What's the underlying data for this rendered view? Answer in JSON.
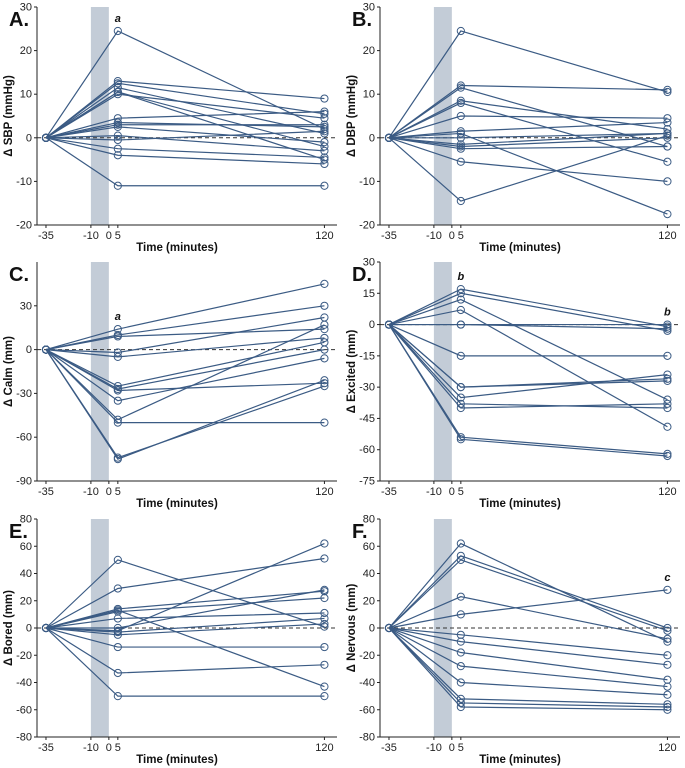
{
  "figure": {
    "line_color": "#3b5b84",
    "band_color": "#c3ccd7",
    "axis_color": "#222222"
  },
  "chart_data": [
    {
      "type": "line",
      "panel_label": "A.",
      "ylabel": "Δ SBP (mmHg)",
      "xlabel": "Time (minutes)",
      "ylim": [
        -20,
        30
      ],
      "yticks": [
        -20,
        -10,
        0,
        10,
        20,
        30
      ],
      "xticks": [
        -35,
        -10,
        0,
        5,
        120
      ],
      "shaded_interval": [
        -10,
        0
      ],
      "reference_line": 0,
      "annotations": [
        {
          "x": 5,
          "text": "a"
        }
      ],
      "x": [
        -35,
        5,
        120
      ],
      "series": [
        {
          "values": [
            0,
            24.5,
            2
          ]
        },
        {
          "values": [
            0,
            13,
            9
          ]
        },
        {
          "values": [
            0,
            12.5,
            5.5
          ]
        },
        {
          "values": [
            0,
            11.5,
            1
          ]
        },
        {
          "values": [
            0,
            10.5,
            -2
          ]
        },
        {
          "values": [
            0,
            10,
            4.5
          ]
        },
        {
          "values": [
            0,
            10.5,
            -5
          ]
        },
        {
          "values": [
            0,
            4.5,
            6
          ]
        },
        {
          "values": [
            0,
            3.5,
            2.5
          ]
        },
        {
          "values": [
            0,
            3,
            3
          ]
        },
        {
          "values": [
            0,
            2.5,
            -1
          ]
        },
        {
          "values": [
            0,
            0.5,
            -3
          ]
        },
        {
          "values": [
            0,
            -0.5,
            1.5
          ]
        },
        {
          "values": [
            0,
            -2.5,
            -4.5
          ]
        },
        {
          "values": [
            0,
            -4,
            -6
          ]
        },
        {
          "values": [
            0,
            -11,
            -11
          ]
        }
      ]
    },
    {
      "type": "line",
      "panel_label": "B.",
      "ylabel": "Δ DBP (mmHg)",
      "xlabel": "Time (minutes)",
      "ylim": [
        -20,
        30
      ],
      "yticks": [
        -20,
        -10,
        0,
        10,
        20,
        30
      ],
      "xticks": [
        -35,
        -10,
        0,
        5,
        120
      ],
      "shaded_interval": [
        -10,
        0
      ],
      "reference_line": 0,
      "annotations": [],
      "x": [
        -35,
        5,
        120
      ],
      "series": [
        {
          "values": [
            0,
            24.5,
            10.5
          ]
        },
        {
          "values": [
            0,
            12,
            11
          ]
        },
        {
          "values": [
            0,
            11.5,
            -2
          ]
        },
        {
          "values": [
            0,
            8.5,
            2
          ]
        },
        {
          "values": [
            0,
            8,
            -5.5
          ]
        },
        {
          "values": [
            0,
            5,
            4.5
          ]
        },
        {
          "values": [
            0,
            1.5,
            3.5
          ]
        },
        {
          "values": [
            0,
            0,
            1
          ]
        },
        {
          "values": [
            0,
            -1.5,
            1
          ]
        },
        {
          "values": [
            0,
            -2,
            0
          ]
        },
        {
          "values": [
            0,
            -2.5,
            -2
          ]
        },
        {
          "values": [
            0,
            -5.5,
            -10
          ]
        },
        {
          "values": [
            0,
            -14.5,
            0.5
          ]
        },
        {
          "values": [
            0,
            1,
            -17.5
          ]
        }
      ]
    },
    {
      "type": "line",
      "panel_label": "C.",
      "ylabel": "Δ Calm (mm)",
      "xlabel": "Time (minutes)",
      "ylim": [
        -90,
        60
      ],
      "yticks": [
        -90,
        -60,
        -30,
        0,
        30
      ],
      "xticks": [
        -35,
        -10,
        0,
        5,
        120
      ],
      "shaded_interval": [
        -10,
        0
      ],
      "reference_line": 0,
      "annotations": [
        {
          "x": 5,
          "text": "a"
        }
      ],
      "x": [
        -35,
        5,
        120
      ],
      "series": [
        {
          "values": [
            0,
            14,
            45
          ]
        },
        {
          "values": [
            0,
            10,
            30
          ]
        },
        {
          "values": [
            0,
            9,
            14
          ]
        },
        {
          "values": [
            0,
            -2,
            22
          ]
        },
        {
          "values": [
            0,
            -5,
            8
          ]
        },
        {
          "values": [
            0,
            -25,
            5
          ]
        },
        {
          "values": [
            0,
            -27,
            0
          ]
        },
        {
          "values": [
            0,
            -28,
            -23
          ]
        },
        {
          "values": [
            0,
            -35,
            -6
          ]
        },
        {
          "values": [
            0,
            -48,
            17
          ]
        },
        {
          "values": [
            0,
            -50,
            -50
          ]
        },
        {
          "values": [
            0,
            -75,
            -21
          ]
        },
        {
          "values": [
            0,
            -74,
            -25
          ]
        }
      ]
    },
    {
      "type": "line",
      "panel_label": "D.",
      "ylabel": "Δ Excited (mm)",
      "xlabel": "Time (minutes)",
      "ylim": [
        -75,
        30
      ],
      "yticks": [
        -75,
        -60,
        -45,
        -30,
        -15,
        0,
        15,
        30
      ],
      "xticks": [
        -35,
        -10,
        0,
        5,
        120
      ],
      "shaded_interval": [
        -10,
        0
      ],
      "reference_line": 0,
      "annotations": [
        {
          "x": 5,
          "text": "b"
        },
        {
          "x": 120,
          "text": "b"
        }
      ],
      "x": [
        -35,
        5,
        120
      ],
      "series": [
        {
          "values": [
            0,
            17,
            -1
          ]
        },
        {
          "values": [
            0,
            15,
            -3
          ]
        },
        {
          "values": [
            0,
            12,
            -36
          ]
        },
        {
          "values": [
            0,
            7,
            -49
          ]
        },
        {
          "values": [
            0,
            0,
            -2
          ]
        },
        {
          "values": [
            0,
            0,
            0
          ]
        },
        {
          "values": [
            0,
            -15,
            -15
          ]
        },
        {
          "values": [
            0,
            -30,
            -26
          ]
        },
        {
          "values": [
            0,
            -30,
            -27
          ]
        },
        {
          "values": [
            0,
            -35,
            -24
          ]
        },
        {
          "values": [
            0,
            -38,
            -40
          ]
        },
        {
          "values": [
            0,
            -40,
            -38
          ]
        },
        {
          "values": [
            0,
            -54,
            -62
          ]
        },
        {
          "values": [
            0,
            -55,
            -63
          ]
        }
      ]
    },
    {
      "type": "line",
      "panel_label": "E.",
      "ylabel": "Δ Bored (mm)",
      "xlabel": "Time (minutes)",
      "ylim": [
        -80,
        80
      ],
      "yticks": [
        -80,
        -60,
        -40,
        -20,
        0,
        20,
        40,
        60,
        80
      ],
      "xticks": [
        -35,
        -10,
        0,
        5,
        120
      ],
      "shaded_interval": [
        -10,
        0
      ],
      "reference_line": 0,
      "annotations": [],
      "x": [
        -35,
        5,
        120
      ],
      "series": [
        {
          "values": [
            0,
            50,
            1
          ]
        },
        {
          "values": [
            0,
            29,
            51
          ]
        },
        {
          "values": [
            0,
            14,
            27
          ]
        },
        {
          "values": [
            0,
            12,
            22
          ]
        },
        {
          "values": [
            0,
            7,
            11
          ]
        },
        {
          "values": [
            0,
            0,
            28
          ]
        },
        {
          "values": [
            0,
            -2,
            62
          ]
        },
        {
          "values": [
            0,
            -3,
            7
          ]
        },
        {
          "values": [
            0,
            -5,
            3
          ]
        },
        {
          "values": [
            0,
            -14,
            -14
          ]
        },
        {
          "values": [
            0,
            -33,
            -27
          ]
        },
        {
          "values": [
            0,
            -50,
            -50
          ]
        },
        {
          "values": [
            0,
            13,
            -43
          ]
        }
      ]
    },
    {
      "type": "line",
      "panel_label": "F.",
      "ylabel": "Δ Nervous (mm)",
      "xlabel": "Time (minutes)",
      "ylim": [
        -80,
        80
      ],
      "yticks": [
        -80,
        -60,
        -40,
        -20,
        0,
        20,
        40,
        60,
        80
      ],
      "xticks": [
        -35,
        -10,
        0,
        5,
        120
      ],
      "shaded_interval": [
        -10,
        0
      ],
      "reference_line": 0,
      "annotations": [
        {
          "x": 120,
          "text": "c"
        }
      ],
      "x": [
        -35,
        5,
        120
      ],
      "series": [
        {
          "values": [
            0,
            62,
            -10
          ]
        },
        {
          "values": [
            0,
            53,
            0
          ]
        },
        {
          "values": [
            0,
            50,
            -2
          ]
        },
        {
          "values": [
            0,
            23,
            -8
          ]
        },
        {
          "values": [
            0,
            10,
            28
          ]
        },
        {
          "values": [
            0,
            -5,
            -20
          ]
        },
        {
          "values": [
            0,
            -10,
            -27
          ]
        },
        {
          "values": [
            0,
            -18,
            -38
          ]
        },
        {
          "values": [
            0,
            -28,
            -43
          ]
        },
        {
          "values": [
            0,
            -40,
            -49
          ]
        },
        {
          "values": [
            0,
            -52,
            -56
          ]
        },
        {
          "values": [
            0,
            -55,
            -58
          ]
        },
        {
          "values": [
            0,
            -58,
            -60
          ]
        }
      ]
    }
  ]
}
